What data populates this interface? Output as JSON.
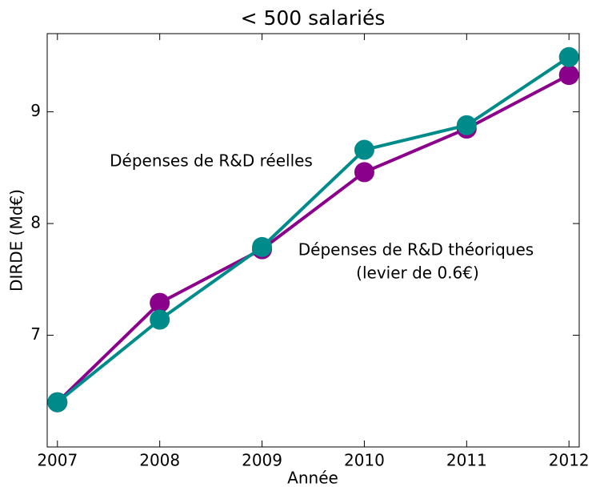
{
  "chart_data": {
    "type": "line",
    "title": "< 500 salariés",
    "x_label": "Année",
    "y_label": "DIRDE (Md€)",
    "x": [
      2007,
      2008,
      2009,
      2010,
      2011,
      2012
    ],
    "xlim": [
      2006.9,
      2012.1
    ],
    "xticks": [
      2007,
      2008,
      2009,
      2010,
      2011,
      2012
    ],
    "ylim": [
      6.0,
      9.7
    ],
    "yticks": [
      7,
      8,
      9
    ],
    "grid": false,
    "series": [
      {
        "name": "Dépenses de R&D théoriques",
        "color": "#8b008b",
        "values": [
          6.4,
          7.29,
          7.77,
          8.46,
          8.85,
          9.33
        ]
      },
      {
        "name": "Dépenses de R&D réelles",
        "color": "#008b8b",
        "values": [
          6.4,
          7.14,
          7.79,
          8.66,
          8.88,
          9.49
        ]
      }
    ],
    "annotations": [
      "(levier de 0.6€)"
    ]
  }
}
